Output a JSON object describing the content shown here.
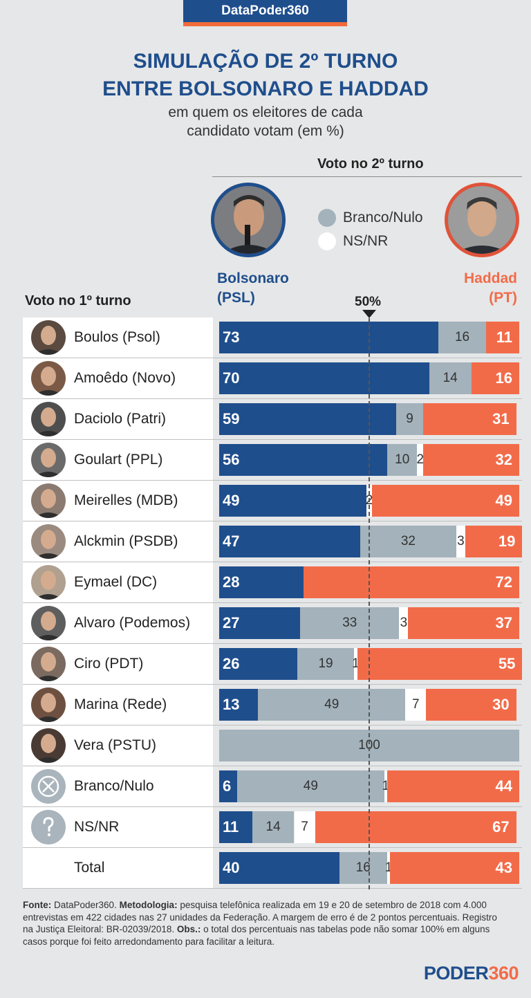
{
  "brand": "DataPoder360",
  "title_line1": "SIMULAÇÃO DE 2º TURNO",
  "title_line2": "ENTRE BOLSONARO E HADDAD",
  "subtitle_line1": "em quem os eleitores de cada",
  "subtitle_line2": "candidato votam (em %)",
  "second_round_header": "Voto no 2º turno",
  "first_round_header": "Voto no 1º turno",
  "bolsonaro_label_1": "Bolsonaro",
  "bolsonaro_label_2": "(PSL)",
  "haddad_label_1": "Haddad",
  "haddad_label_2": "(PT)",
  "legend": {
    "branco_nulo": "Branco/Nulo",
    "ns_nr": "NS/NR"
  },
  "midpoint_label": "50%",
  "colors": {
    "bolsonaro": "#1f4e8c",
    "branco_nulo": "#a3b2bb",
    "ns_nr": "#ffffff",
    "haddad": "#f26b49",
    "brand_accent": "#f26b3a"
  },
  "chart_data": {
    "type": "bar",
    "orientation": "horizontal-stacked",
    "categories": [
      "Boulos (Psol)",
      "Amoêdo (Novo)",
      "Daciolo (Patri)",
      "Goulart (PPL)",
      "Meirelles (MDB)",
      "Alckmin (PSDB)",
      "Eymael (DC)",
      "Alvaro (Podemos)",
      "Ciro (PDT)",
      "Marina (Rede)",
      "Vera (PSTU)",
      "Branco/Nulo",
      "NS/NR",
      "Total"
    ],
    "icons": [
      "photo",
      "photo",
      "photo",
      "photo",
      "photo",
      "photo",
      "photo",
      "photo",
      "photo",
      "photo",
      "photo",
      "cross-circle-icon",
      "question-icon",
      "none"
    ],
    "series": [
      {
        "name": "Bolsonaro (PSL)",
        "values": [
          73,
          70,
          59,
          56,
          49,
          47,
          28,
          27,
          26,
          13,
          0,
          6,
          11,
          40
        ]
      },
      {
        "name": "Branco/Nulo",
        "values": [
          16,
          14,
          9,
          10,
          0,
          32,
          0,
          33,
          19,
          49,
          100,
          49,
          14,
          16
        ]
      },
      {
        "name": "NS/NR",
        "values": [
          0,
          0,
          0,
          2,
          2,
          3,
          0,
          3,
          1,
          7,
          0,
          1,
          7,
          1
        ]
      },
      {
        "name": "Haddad (PT)",
        "values": [
          11,
          16,
          31,
          32,
          49,
          19,
          72,
          37,
          55,
          30,
          0,
          44,
          67,
          43
        ]
      }
    ],
    "xlim": [
      0,
      100
    ],
    "reference_line": 50
  },
  "footer": {
    "fonte_label": "Fonte:",
    "fonte_text": " DataPoder360.  ",
    "metodologia_label": "Metodologia:",
    "metodologia_text": " pesquisa telefônica realizada em 19 e 20 de setembro de 2018 com 4.000 entrevistas em 422 cidades nas 27 unidades da Federação. A margem de erro é de 2 pontos percentuais. Registro na Justiça Eleitoral: BR-02039/2018. ",
    "obs_label": "Obs.:",
    "obs_text": " o total dos percentuais nas tabelas pode não somar 100% em alguns casos porque foi feito arredondamento para facilitar a leitura."
  },
  "logo": {
    "part1": "PODER",
    "part2": "360"
  }
}
